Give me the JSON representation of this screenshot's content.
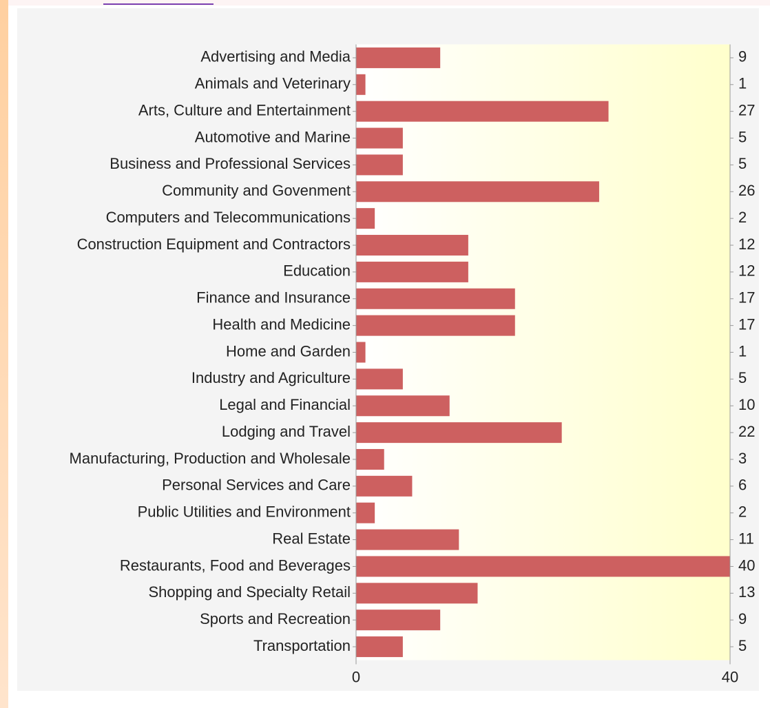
{
  "chart_data": {
    "type": "bar",
    "orientation": "horizontal",
    "categories": [
      "Advertising and Media",
      "Animals and Veterinary",
      "Arts, Culture and Entertainment",
      "Automotive and Marine",
      "Business and Professional Services",
      "Community and Govenment",
      "Computers and Telecommunications",
      "Construction Equipment and Contractors",
      "Education",
      "Finance and Insurance",
      "Health and Medicine",
      "Home and Garden",
      "Industry and Agriculture",
      "Legal and Financial",
      "Lodging and Travel",
      "Manufacturing, Production and Wholesale",
      "Personal Services and Care",
      "Public Utilities and Environment",
      "Real Estate",
      "Restaurants, Food and Beverages",
      "Shopping and Specialty Retail",
      "Sports and Recreation",
      "Transportation"
    ],
    "values": [
      9,
      1,
      27,
      5,
      5,
      26,
      2,
      12,
      12,
      17,
      17,
      1,
      5,
      10,
      22,
      3,
      6,
      2,
      11,
      40,
      13,
      9,
      5
    ],
    "color": "#cd6060",
    "xlim": [
      0,
      40
    ],
    "xticks": [
      0,
      40
    ],
    "show_values": true
  }
}
